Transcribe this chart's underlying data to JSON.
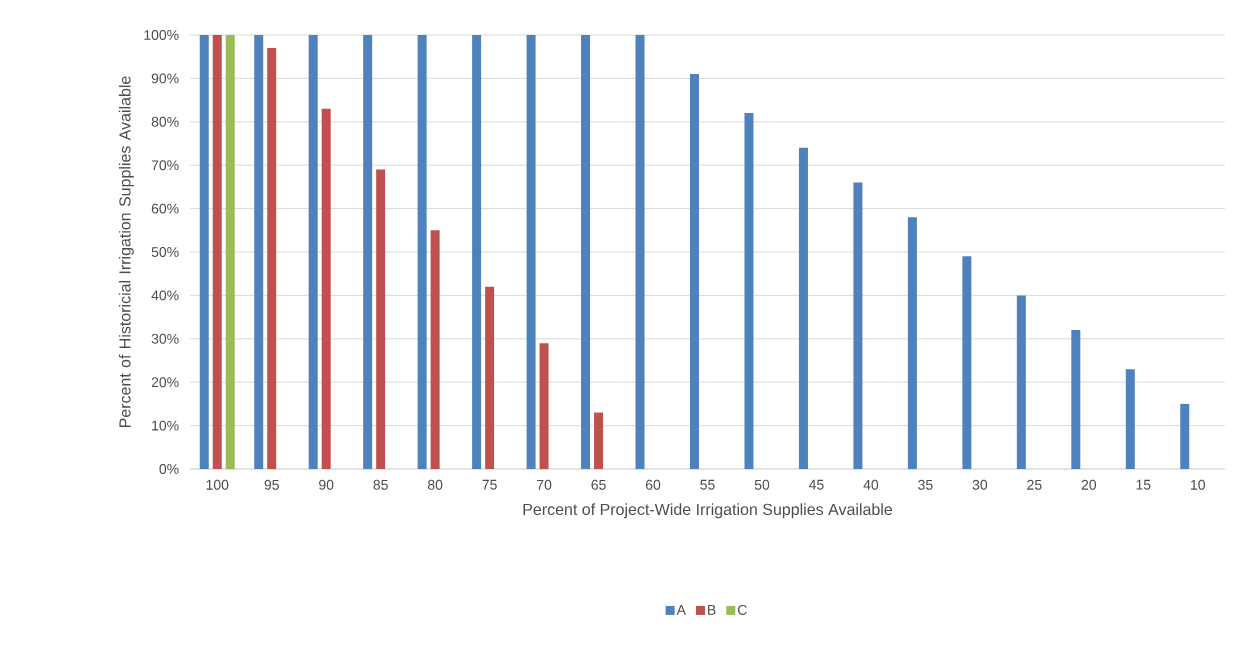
{
  "chart_data": {
    "type": "bar",
    "xlabel": "Percent of Project-Wide Irrigation Supplies Available",
    "ylabel": "Percent of Historicial Irrigation Supplies Available",
    "categories": [
      "100",
      "95",
      "90",
      "85",
      "80",
      "75",
      "70",
      "65",
      "60",
      "55",
      "50",
      "45",
      "40",
      "35",
      "30",
      "25",
      "20",
      "15",
      "10"
    ],
    "series": [
      {
        "name": "A",
        "color": "#4f81bd",
        "values": [
          100,
          100,
          100,
          100,
          100,
          100,
          100,
          100,
          100,
          91,
          82,
          74,
          66,
          58,
          49,
          40,
          32,
          23,
          15
        ]
      },
      {
        "name": "B",
        "color": "#c0504d",
        "values": [
          100,
          97,
          83,
          69,
          55,
          42,
          29,
          13,
          null,
          null,
          null,
          null,
          null,
          null,
          null,
          null,
          null,
          null,
          null
        ]
      },
      {
        "name": "C",
        "color": "#9bbb59",
        "values": [
          100,
          null,
          null,
          null,
          null,
          null,
          null,
          null,
          null,
          null,
          null,
          null,
          null,
          null,
          null,
          null,
          null,
          null,
          null
        ]
      }
    ],
    "ylim": [
      0,
      100
    ],
    "yticks": [
      {
        "value": 0,
        "label": "0%"
      },
      {
        "value": 10,
        "label": "10%"
      },
      {
        "value": 20,
        "label": "20%"
      },
      {
        "value": 30,
        "label": "30%"
      },
      {
        "value": 40,
        "label": "40%"
      },
      {
        "value": 50,
        "label": "50%"
      },
      {
        "value": 60,
        "label": "60%"
      },
      {
        "value": 70,
        "label": "70%"
      },
      {
        "value": 80,
        "label": "80%"
      },
      {
        "value": 90,
        "label": "90%"
      },
      {
        "value": 100,
        "label": "100%"
      }
    ],
    "grid": "y",
    "legend": "bottom"
  }
}
